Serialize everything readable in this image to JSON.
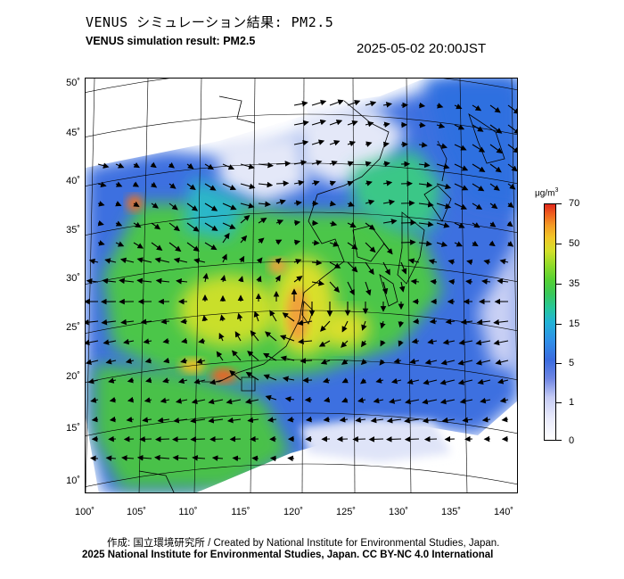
{
  "header": {
    "title_jp": "VENUS シミュレーション結果: PM2.5",
    "title_en": "VENUS simulation result: PM2.5",
    "timestamp": "2025-05-02 20:00JST"
  },
  "map": {
    "latitude_labels": [
      "50˚",
      "45˚",
      "40˚",
      "35˚",
      "30˚",
      "25˚",
      "20˚",
      "15˚",
      "10˚"
    ],
    "longitude_labels": [
      "100˚",
      "105˚",
      "110˚",
      "115˚",
      "120˚",
      "125˚",
      "130˚",
      "135˚",
      "140˚"
    ],
    "lat_range": [
      10,
      50
    ],
    "lon_range": [
      100,
      140
    ],
    "layers": [
      "PM2.5 concentration field",
      "wind vectors",
      "coastlines",
      "graticule"
    ]
  },
  "colorbar": {
    "unit": "μg/m3",
    "ticks": [
      "70",
      "50",
      "35",
      "15",
      "5",
      "1",
      "0"
    ],
    "colors": {
      "0": "#ffffff",
      "1": "#c5cbf4",
      "5": "#2f8fe8",
      "15": "#3ac75a",
      "35": "#d1e02b",
      "50": "#f39b25",
      "70": "#e0281c"
    }
  },
  "footer": {
    "credit_line": "作成: 国立環境研究所 / Created by National Institute for Environmental Studies, Japan.",
    "license_line": "2025 National Institute for Environmental Studies, Japan. CC BY-NC 4.0 International"
  }
}
